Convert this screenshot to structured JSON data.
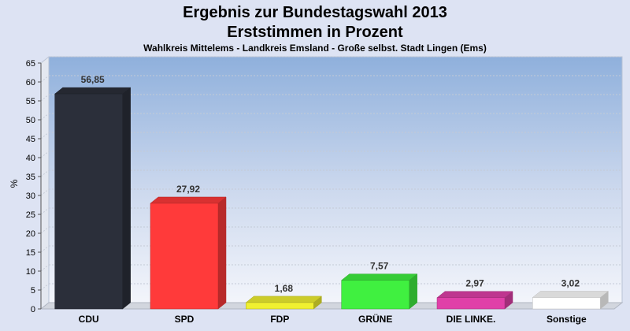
{
  "header": {
    "title_line1": "Ergebnis zur Bundestagswahl 2013",
    "title_line2": "Erststimmen in Prozent",
    "subtitle": "Wahlkreis Mittelems - Landkreis Emsland - Große selbst. Stadt Lingen (Ems)"
  },
  "chart_data": {
    "type": "bar",
    "ylabel": "%",
    "ylim": [
      0,
      65
    ],
    "ytick_step": 5,
    "grid": true,
    "categories": [
      "CDU",
      "SPD",
      "FDP",
      "GRÜNE",
      "DIE LINKE.",
      "Sonstige"
    ],
    "values": [
      56.85,
      27.92,
      1.68,
      7.57,
      2.97,
      3.02
    ],
    "value_labels": [
      "56,85",
      "27,92",
      "1,68",
      "7,57",
      "2,97",
      "3,02"
    ],
    "colors": [
      "#2b2f3a",
      "#ff3a3a",
      "#f0f030",
      "#40f040",
      "#e040a8",
      "#ffffff"
    ]
  }
}
